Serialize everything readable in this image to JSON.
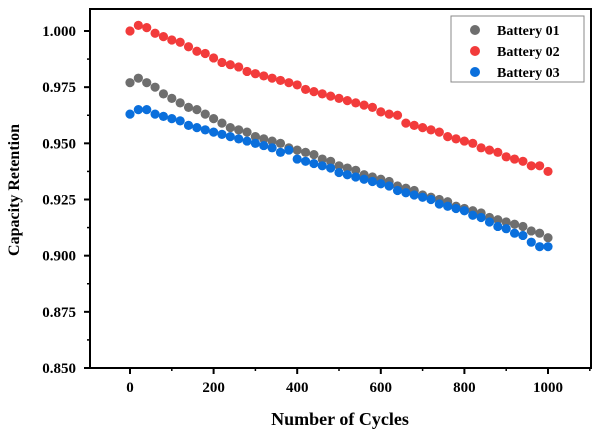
{
  "chart_data": {
    "type": "scatter",
    "title": "",
    "xlabel": "Number of Cycles",
    "ylabel": "Capacity Retention",
    "xlim": [
      -95,
      1100
    ],
    "ylim": [
      0.85,
      1.01
    ],
    "xticks": [
      0,
      200,
      400,
      600,
      800,
      1000
    ],
    "xtick_labels": [
      "0",
      "200",
      "400",
      "600",
      "800",
      "1000"
    ],
    "yticks": [
      0.85,
      0.875,
      0.9,
      0.925,
      0.95,
      0.975,
      1.0
    ],
    "ytick_labels": [
      "0.850",
      "0.875",
      "0.900",
      "0.925",
      "0.950",
      "0.975",
      "1.000"
    ],
    "grid": false,
    "legend_position": "top-right",
    "x": [
      0,
      20,
      40,
      60,
      80,
      100,
      120,
      140,
      160,
      180,
      200,
      220,
      240,
      260,
      280,
      300,
      320,
      340,
      360,
      380,
      400,
      420,
      440,
      460,
      480,
      500,
      520,
      540,
      560,
      580,
      600,
      620,
      640,
      660,
      680,
      700,
      720,
      740,
      760,
      780,
      800,
      820,
      840,
      860,
      880,
      900,
      920,
      940,
      960,
      980,
      1000
    ],
    "series": [
      {
        "name": "Battery 01",
        "color": "#6e6e6e",
        "values": [
          0.977,
          0.979,
          0.977,
          0.975,
          0.972,
          0.97,
          0.968,
          0.966,
          0.965,
          0.963,
          0.961,
          0.959,
          0.957,
          0.956,
          0.955,
          0.953,
          0.952,
          0.951,
          0.95,
          0.948,
          0.947,
          0.946,
          0.945,
          0.943,
          0.942,
          0.94,
          0.939,
          0.938,
          0.936,
          0.935,
          0.934,
          0.933,
          0.931,
          0.93,
          0.929,
          0.927,
          0.926,
          0.925,
          0.924,
          0.922,
          0.921,
          0.92,
          0.919,
          0.917,
          0.916,
          0.915,
          0.914,
          0.913,
          0.911,
          0.91,
          0.908
        ]
      },
      {
        "name": "Battery 02",
        "color": "#f23b3b",
        "values": [
          1.0,
          1.0025,
          1.0015,
          0.999,
          0.9975,
          0.996,
          0.995,
          0.993,
          0.991,
          0.99,
          0.988,
          0.986,
          0.985,
          0.984,
          0.982,
          0.981,
          0.98,
          0.979,
          0.978,
          0.977,
          0.976,
          0.974,
          0.973,
          0.972,
          0.971,
          0.97,
          0.969,
          0.968,
          0.967,
          0.966,
          0.964,
          0.963,
          0.9625,
          0.959,
          0.958,
          0.957,
          0.956,
          0.955,
          0.953,
          0.952,
          0.951,
          0.95,
          0.948,
          0.947,
          0.946,
          0.944,
          0.943,
          0.942,
          0.94,
          0.94,
          0.9375
        ]
      },
      {
        "name": "Battery 03",
        "color": "#0a6fdc",
        "values": [
          0.963,
          0.965,
          0.965,
          0.963,
          0.962,
          0.961,
          0.96,
          0.958,
          0.957,
          0.956,
          0.955,
          0.954,
          0.953,
          0.952,
          0.951,
          0.95,
          0.949,
          0.948,
          0.946,
          0.947,
          0.943,
          0.942,
          0.941,
          0.94,
          0.939,
          0.937,
          0.936,
          0.935,
          0.934,
          0.933,
          0.932,
          0.931,
          0.929,
          0.928,
          0.927,
          0.926,
          0.925,
          0.923,
          0.922,
          0.921,
          0.92,
          0.918,
          0.917,
          0.915,
          0.913,
          0.912,
          0.91,
          0.909,
          0.906,
          0.904,
          0.904
        ]
      }
    ]
  }
}
